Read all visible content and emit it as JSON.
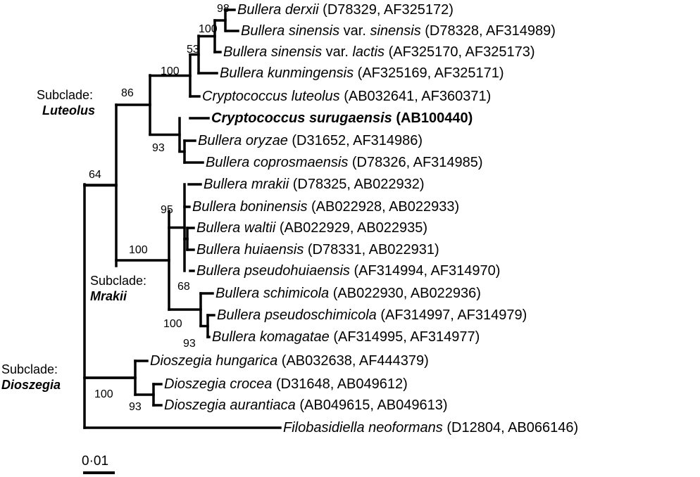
{
  "taxa": [
    {
      "genus": "Bullera",
      "species": "derxii",
      "variety_label": "",
      "variety": "",
      "accession": " (D78329, AF325172)",
      "bold": false
    },
    {
      "genus": "Bullera",
      "species": "sinensis",
      "variety_label": " var. ",
      "variety": "sinensis",
      "accession": " (D78328, AF314989)",
      "bold": false
    },
    {
      "genus": "Bullera",
      "species": "sinensis",
      "variety_label": " var. ",
      "variety": "lactis",
      "accession": " (AF325170, AF325173)",
      "bold": false
    },
    {
      "genus": "Bullera",
      "species": "kunmingensis",
      "variety_label": "",
      "variety": "",
      "accession": " (AF325169, AF325171)",
      "bold": false
    },
    {
      "genus": "Cryptococcus",
      "species": "luteolus",
      "variety_label": "",
      "variety": "",
      "accession": " (AB032641, AF360371)",
      "bold": false
    },
    {
      "genus": "Cryptococcus",
      "species": "surugaensis",
      "variety_label": "",
      "variety": "",
      "accession": " (AB100440)",
      "bold": true
    },
    {
      "genus": "Bullera",
      "species": "oryzae",
      "variety_label": "",
      "variety": "",
      "accession": " (D31652, AF314986)",
      "bold": false
    },
    {
      "genus": "Bullera",
      "species": "coprosmaensis",
      "variety_label": "",
      "variety": "",
      "accession": " (D78326, AF314985)",
      "bold": false
    },
    {
      "genus": "Bullera",
      "species": "mrakii",
      "variety_label": "",
      "variety": "",
      "accession": " (D78325, AB022932)",
      "bold": false
    },
    {
      "genus": "Bullera",
      "species": "boninensis",
      "variety_label": "",
      "variety": "",
      "accession": " (AB022928, AB022933)",
      "bold": false
    },
    {
      "genus": "Bullera",
      "species": "waltii",
      "variety_label": "",
      "variety": "",
      "accession": " (AB022929, AB022935)",
      "bold": false
    },
    {
      "genus": "Bullera",
      "species": "huiaensis",
      "variety_label": "",
      "variety": "",
      "accession": " (D78331, AB022931)",
      "bold": false
    },
    {
      "genus": "Bullera",
      "species": "pseudohuiaensis",
      "variety_label": "",
      "variety": "",
      "accession": " (AF314994, AF314970)",
      "bold": false
    },
    {
      "genus": "Bullera",
      "species": "schimicola",
      "variety_label": "",
      "variety": "",
      "accession": " (AB022930, AB022936)",
      "bold": false
    },
    {
      "genus": "Bullera",
      "species": "pseudoschimicola",
      "variety_label": "",
      "variety": "",
      "accession": " (AF314997, AF314979)",
      "bold": false
    },
    {
      "genus": "Bullera",
      "species": "komagatae",
      "variety_label": "",
      "variety": "",
      "accession": " (AF314995, AF314977)",
      "bold": false
    },
    {
      "genus": "Dioszegia",
      "species": "hungarica",
      "variety_label": "",
      "variety": "",
      "accession": " (AB032638, AF444379)",
      "bold": false
    },
    {
      "genus": "Dioszegia",
      "species": "crocea",
      "variety_label": "",
      "variety": "",
      "accession": " (D31648, AB049612)",
      "bold": false
    },
    {
      "genus": "Dioszegia",
      "species": "aurantiaca",
      "variety_label": "",
      "variety": "",
      "accession": " (AB049615, AB049613)",
      "bold": false
    },
    {
      "genus": "Filobasidiella",
      "species": "neoformans",
      "variety_label": "",
      "variety": "",
      "accession": " (D12804, AB066146)",
      "bold": false
    }
  ],
  "bootstrap": [
    "98",
    "100",
    "53",
    "100",
    "86",
    "93",
    "64",
    "95",
    "100",
    "68",
    "100",
    "93",
    "100",
    "93"
  ],
  "subclades": [
    {
      "prefix": "Subclade:",
      "name": "Luteolus"
    },
    {
      "prefix": "Subclade:",
      "name": "Mrakii"
    },
    {
      "prefix": "Subclade:",
      "name": "Dioszegia"
    }
  ],
  "scale_bar": {
    "label": "0·01",
    "value": 0.01
  }
}
